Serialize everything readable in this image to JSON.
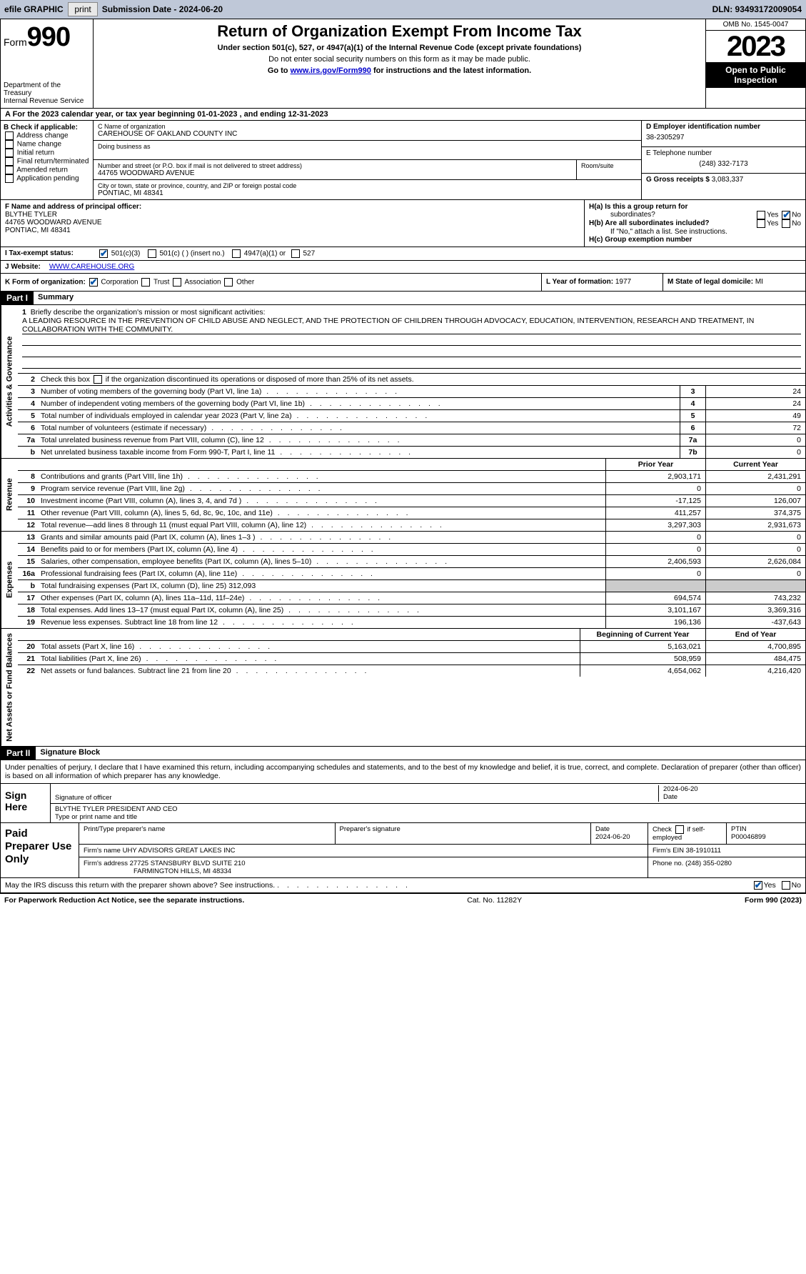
{
  "topbar": {
    "efile_label": "efile GRAPHIC",
    "print_btn": "print",
    "submission_label": "Submission Date - 2024-06-20",
    "dln_label": "DLN: 93493172009054"
  },
  "header": {
    "form_word": "Form",
    "form_num": "990",
    "dept": "Department of the Treasury",
    "irs": "Internal Revenue Service",
    "title": "Return of Organization Exempt From Income Tax",
    "sub": "Under section 501(c), 527, or 4947(a)(1) of the Internal Revenue Code (except private foundations)",
    "note1": "Do not enter social security numbers on this form as it may be made public.",
    "note2_pre": "Go to ",
    "note2_link": "www.irs.gov/Form990",
    "note2_post": " for instructions and the latest information.",
    "omb": "OMB No. 1545-0047",
    "year": "2023",
    "inspect": "Open to Public Inspection"
  },
  "period": {
    "text_a": "A   For the 2023 calendar year, or tax year beginning 01-01-2023    , and ending 12-31-2023"
  },
  "box_b": {
    "label": "B Check if applicable:",
    "items": [
      "Address change",
      "Name change",
      "Initial return",
      "Final return/terminated",
      "Amended return",
      "Application pending"
    ]
  },
  "box_c": {
    "name_label": "C Name of organization",
    "name": "CAREHOUSE OF OAKLAND COUNTY INC",
    "dba_label": "Doing business as",
    "street_label": "Number and street (or P.O. box if mail is not delivered to street address)",
    "room_label": "Room/suite",
    "street": "44765 WOODWARD AVENUE",
    "city_label": "City or town, state or province, country, and ZIP or foreign postal code",
    "city": "PONTIAC, MI  48341"
  },
  "box_d": {
    "ein_label": "D Employer identification number",
    "ein": "38-2305297",
    "phone_label": "E Telephone number",
    "phone": "(248) 332-7173",
    "gross_label": "G Gross receipts $",
    "gross": "3,083,337"
  },
  "box_f": {
    "label": "F  Name and address of principal officer:",
    "name": "BLYTHE TYLER",
    "street": "44765 WOODWARD AVENUE",
    "city": "PONTIAC, MI  48341"
  },
  "box_h": {
    "a_label": "H(a)  Is this a group return for",
    "a_label2": "subordinates?",
    "b_label": "H(b)  Are all subordinates included?",
    "b_note": "If \"No,\" attach a list. See instructions.",
    "c_label": "H(c)  Group exemption number ",
    "yes": "Yes",
    "no": "No"
  },
  "box_i": {
    "label": "I    Tax-exempt status:",
    "c3": "501(c)(3)",
    "c_other": "501(c) (  ) (insert no.)",
    "a1": "4947(a)(1) or",
    "s527": "527"
  },
  "box_j": {
    "label": "J    Website: ",
    "url": "WWW.CAREHOUSE.ORG"
  },
  "box_k": {
    "label": "K Form of organization:",
    "corp": "Corporation",
    "trust": "Trust",
    "assoc": "Association",
    "other": "Other"
  },
  "box_l": {
    "label": "L Year of formation: ",
    "val": "1977"
  },
  "box_m": {
    "label": "M State of legal domicile: ",
    "val": "MI"
  },
  "part1": {
    "header": "Part I",
    "title": "Summary",
    "line1_label": "Briefly describe the organization's mission or most significant activities:",
    "mission": "A LEADING RESOURCE IN THE PREVENTION OF CHILD ABUSE AND NEGLECT, AND THE PROTECTION OF CHILDREN THROUGH ADVOCACY, EDUCATION, INTERVENTION, RESEARCH AND TREATMENT, IN COLLABORATION WITH THE COMMUNITY.",
    "line2": "Check this box       if the organization discontinued its operations or disposed of more than 25% of its net assets.",
    "sides": {
      "gov": "Activities & Governance",
      "rev": "Revenue",
      "exp": "Expenses",
      "net": "Net Assets or Fund Balances"
    },
    "cols": {
      "prior": "Prior Year",
      "current": "Current Year",
      "begin": "Beginning of Current Year",
      "end": "End of Year"
    },
    "gov_lines": [
      {
        "n": "3",
        "d": "Number of voting members of the governing body (Part VI, line 1a)",
        "box": "3",
        "v": "24"
      },
      {
        "n": "4",
        "d": "Number of independent voting members of the governing body (Part VI, line 1b)",
        "box": "4",
        "v": "24"
      },
      {
        "n": "5",
        "d": "Total number of individuals employed in calendar year 2023 (Part V, line 2a)",
        "box": "5",
        "v": "49"
      },
      {
        "n": "6",
        "d": "Total number of volunteers (estimate if necessary)",
        "box": "6",
        "v": "72"
      },
      {
        "n": "7a",
        "d": "Total unrelated business revenue from Part VIII, column (C), line 12",
        "box": "7a",
        "v": "0"
      },
      {
        "n": "b",
        "d": "Net unrelated business taxable income from Form 990-T, Part I, line 11",
        "box": "7b",
        "v": "0"
      }
    ],
    "rev_lines": [
      {
        "n": "8",
        "d": "Contributions and grants (Part VIII, line 1h)",
        "p": "2,903,171",
        "c": "2,431,291"
      },
      {
        "n": "9",
        "d": "Program service revenue (Part VIII, line 2g)",
        "p": "0",
        "c": "0"
      },
      {
        "n": "10",
        "d": "Investment income (Part VIII, column (A), lines 3, 4, and 7d )",
        "p": "-17,125",
        "c": "126,007"
      },
      {
        "n": "11",
        "d": "Other revenue (Part VIII, column (A), lines 5, 6d, 8c, 9c, 10c, and 11e)",
        "p": "411,257",
        "c": "374,375"
      },
      {
        "n": "12",
        "d": "Total revenue—add lines 8 through 11 (must equal Part VIII, column (A), line 12)",
        "p": "3,297,303",
        "c": "2,931,673"
      }
    ],
    "exp_lines": [
      {
        "n": "13",
        "d": "Grants and similar amounts paid (Part IX, column (A), lines 1–3 )",
        "p": "0",
        "c": "0"
      },
      {
        "n": "14",
        "d": "Benefits paid to or for members (Part IX, column (A), line 4)",
        "p": "0",
        "c": "0"
      },
      {
        "n": "15",
        "d": "Salaries, other compensation, employee benefits (Part IX, column (A), lines 5–10)",
        "p": "2,406,593",
        "c": "2,626,084"
      },
      {
        "n": "16a",
        "d": "Professional fundraising fees (Part IX, column (A), line 11e)",
        "p": "0",
        "c": "0"
      },
      {
        "n": "b",
        "d": "Total fundraising expenses (Part IX, column (D), line 25) 312,093",
        "shade": true
      },
      {
        "n": "17",
        "d": "Other expenses (Part IX, column (A), lines 11a–11d, 11f–24e)",
        "p": "694,574",
        "c": "743,232"
      },
      {
        "n": "18",
        "d": "Total expenses. Add lines 13–17 (must equal Part IX, column (A), line 25)",
        "p": "3,101,167",
        "c": "3,369,316"
      },
      {
        "n": "19",
        "d": "Revenue less expenses. Subtract line 18 from line 12",
        "p": "196,136",
        "c": "-437,643"
      }
    ],
    "net_lines": [
      {
        "n": "20",
        "d": "Total assets (Part X, line 16)",
        "p": "5,163,021",
        "c": "4,700,895"
      },
      {
        "n": "21",
        "d": "Total liabilities (Part X, line 26)",
        "p": "508,959",
        "c": "484,475"
      },
      {
        "n": "22",
        "d": "Net assets or fund balances. Subtract line 21 from line 20",
        "p": "4,654,062",
        "c": "4,216,420"
      }
    ]
  },
  "part2": {
    "header": "Part II",
    "title": "Signature Block",
    "decl": "Under penalties of perjury, I declare that I have examined this return, including accompanying schedules and statements, and to the best of my knowledge and belief, it is true, correct, and complete. Declaration of preparer (other than officer) is based on all information of which preparer has any knowledge."
  },
  "sign": {
    "label": "Sign Here",
    "sig_label": "Signature of officer",
    "date_label": "Date",
    "date": "2024-06-20",
    "name": "BLYTHE TYLER  PRESIDENT AND CEO",
    "name_label": "Type or print name and title"
  },
  "prep": {
    "label": "Paid Preparer Use Only",
    "r1": {
      "c1_label": "Print/Type preparer's name",
      "c2_label": "Preparer's signature",
      "c3_label": "Date",
      "c3_val": "2024-06-20",
      "c4_label": "Check       if self-employed",
      "c5_label": "PTIN",
      "c5_val": "P00046899"
    },
    "r2": {
      "firm_label": "Firm's name    ",
      "firm": "UHY ADVISORS GREAT LAKES INC",
      "ein_label": "Firm's EIN  ",
      "ein": "38-1910111"
    },
    "r3": {
      "addr_label": "Firm's address ",
      "addr1": "27725 STANSBURY BLVD SUITE 210",
      "addr2": "FARMINGTON HILLS, MI  48334",
      "phone_label": "Phone no. ",
      "phone": "(248) 355-0280"
    },
    "discuss": "May the IRS discuss this return with the preparer shown above? See instructions."
  },
  "footer": {
    "left": "For Paperwork Reduction Act Notice, see the separate instructions.",
    "mid": "Cat. No. 11282Y",
    "right": "Form 990 (2023)"
  }
}
